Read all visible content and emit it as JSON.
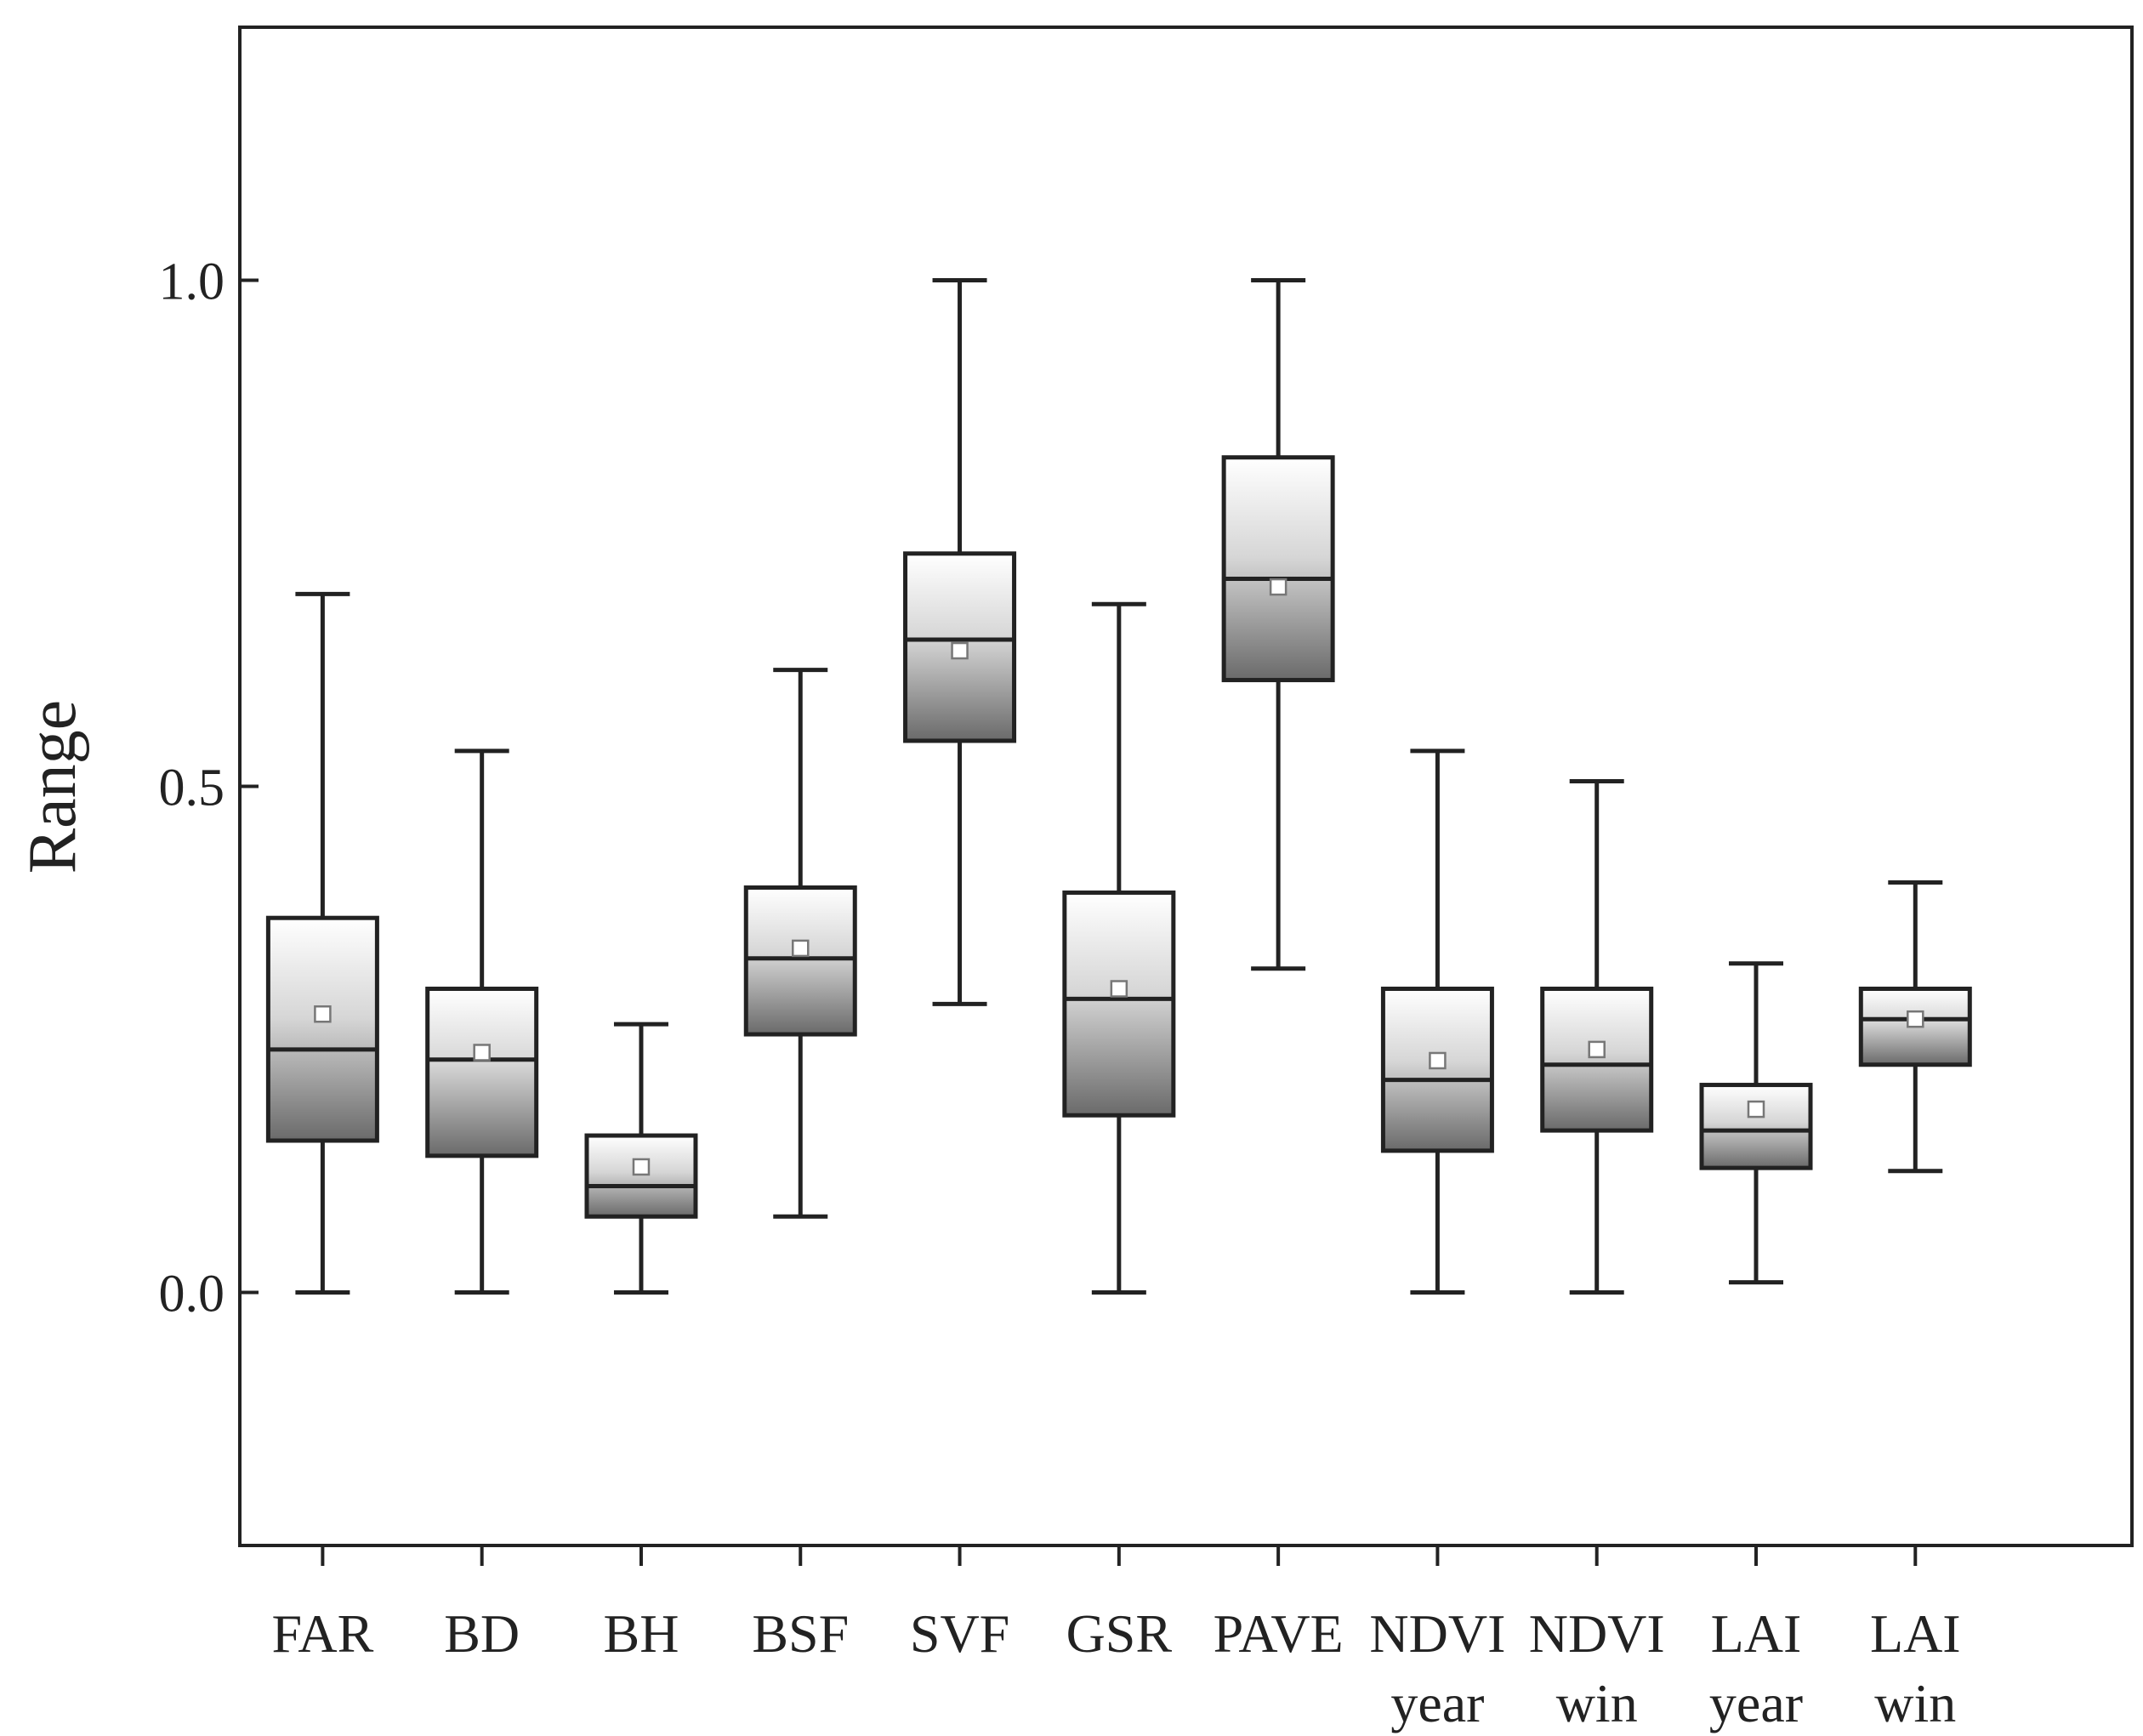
{
  "chart_data": {
    "type": "boxplot",
    "title": "",
    "xlabel": "",
    "ylabel": "Range",
    "ylim": [
      -0.25,
      1.25
    ],
    "yticks": [
      0.0,
      0.5,
      1.0
    ],
    "ytick_labels": [
      "0.0",
      "0.5",
      "1.0"
    ],
    "grid": false,
    "legend": "none",
    "categories": [
      [
        "FAR"
      ],
      [
        "BD"
      ],
      [
        "BH"
      ],
      [
        "BSF"
      ],
      [
        "SVF"
      ],
      [
        "GSR"
      ],
      [
        "PAVE"
      ],
      [
        "NDVI",
        "year"
      ],
      [
        "NDVI",
        "win"
      ],
      [
        "LAI",
        "year"
      ],
      [
        "LAI",
        "win"
      ]
    ],
    "boxes": [
      {
        "whisker_low": 0.0,
        "q1": 0.15,
        "median": 0.24,
        "q3": 0.37,
        "whisker_high": 0.69,
        "mean": 0.275
      },
      {
        "whisker_low": 0.0,
        "q1": 0.135,
        "median": 0.23,
        "q3": 0.3,
        "whisker_high": 0.535,
        "mean": 0.237
      },
      {
        "whisker_low": 0.0,
        "q1": 0.075,
        "median": 0.105,
        "q3": 0.155,
        "whisker_high": 0.265,
        "mean": 0.124
      },
      {
        "whisker_low": 0.075,
        "q1": 0.255,
        "median": 0.33,
        "q3": 0.4,
        "whisker_high": 0.615,
        "mean": 0.34
      },
      {
        "whisker_low": 0.285,
        "q1": 0.545,
        "median": 0.645,
        "q3": 0.73,
        "whisker_high": 1.0,
        "mean": 0.634
      },
      {
        "whisker_low": 0.0,
        "q1": 0.175,
        "median": 0.29,
        "q3": 0.395,
        "whisker_high": 0.68,
        "mean": 0.3
      },
      {
        "whisker_low": 0.32,
        "q1": 0.605,
        "median": 0.705,
        "q3": 0.825,
        "whisker_high": 1.0,
        "mean": 0.697
      },
      {
        "whisker_low": 0.0,
        "q1": 0.14,
        "median": 0.21,
        "q3": 0.3,
        "whisker_high": 0.535,
        "mean": 0.229
      },
      {
        "whisker_low": 0.0,
        "q1": 0.16,
        "median": 0.225,
        "q3": 0.3,
        "whisker_high": 0.505,
        "mean": 0.24
      },
      {
        "whisker_low": 0.01,
        "q1": 0.123,
        "median": 0.16,
        "q3": 0.205,
        "whisker_high": 0.325,
        "mean": 0.181
      },
      {
        "whisker_low": 0.12,
        "q1": 0.225,
        "median": 0.27,
        "q3": 0.3,
        "whisker_high": 0.405,
        "mean": 0.27
      }
    ]
  }
}
